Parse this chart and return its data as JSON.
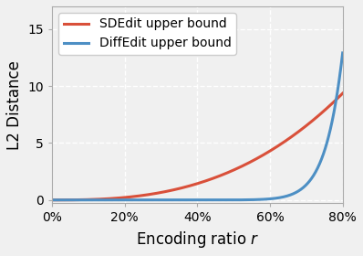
{
  "title": "",
  "xlabel": "Encoding ratio $r$",
  "ylabel": "L2 Distance",
  "sdedit_color": "#d9503a",
  "diffedit_color": "#4d8fc4",
  "sdedit_label": "SDEdit upper bound",
  "diffedit_label": "DiffEdit upper bound",
  "xlim": [
    0.0,
    0.8
  ],
  "ylim": [
    -0.3,
    17.0
  ],
  "xticks": [
    0.0,
    0.2,
    0.4,
    0.6,
    0.8
  ],
  "yticks": [
    0,
    5,
    10,
    15
  ],
  "grid": true,
  "figsize": [
    3.98,
    2.8
  ],
  "dpi": 100,
  "legend_loc": "upper left",
  "num_points": 1000,
  "sdedit_scale": 12.5,
  "sdedit_power": 2.3,
  "diffedit_A": 700.0,
  "diffedit_n": 15.0
}
